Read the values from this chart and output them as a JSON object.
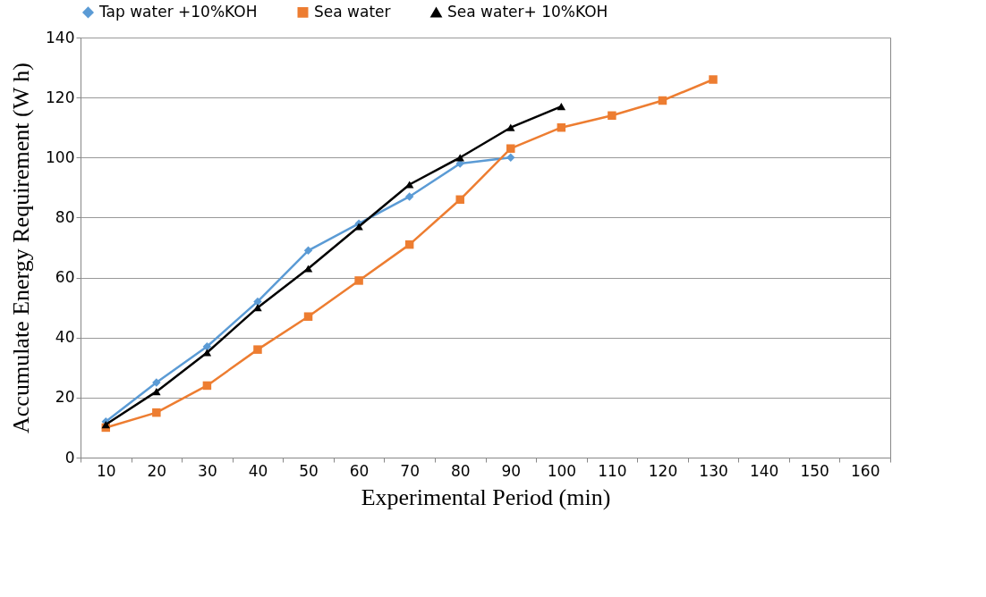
{
  "chart_data": {
    "type": "line",
    "xlabel": "Experimental Period (min)",
    "ylabel": "Accumulate Energy Requirement (W h)",
    "categories": [
      "10",
      "20",
      "30",
      "40",
      "50",
      "60",
      "70",
      "80",
      "90",
      "100",
      "110",
      "120",
      "130",
      "140",
      "150",
      "160"
    ],
    "series": [
      {
        "name": "Tap water +10%KOH",
        "color": "#5b9bd5",
        "marker": "diamond",
        "values": [
          12,
          25,
          37,
          52,
          69,
          78,
          87,
          98,
          100,
          null,
          null,
          null,
          null,
          null,
          null,
          null
        ]
      },
      {
        "name": "Sea water",
        "color": "#ed7d31",
        "marker": "square",
        "values": [
          10,
          15,
          24,
          36,
          47,
          59,
          71,
          86,
          103,
          110,
          114,
          119,
          126,
          null,
          null,
          null
        ]
      },
      {
        "name": "Sea water+ 10%KOH",
        "color": "#000000",
        "marker": "triangle",
        "values": [
          11,
          22,
          35,
          50,
          63,
          77,
          91,
          100,
          110,
          117,
          null,
          null,
          null,
          null,
          null,
          null
        ]
      }
    ],
    "ylim": [
      0,
      140
    ],
    "yticks": [
      0,
      20,
      40,
      60,
      80,
      100,
      120,
      140
    ],
    "grid": "y",
    "legend": "top",
    "line_style": "solid"
  }
}
